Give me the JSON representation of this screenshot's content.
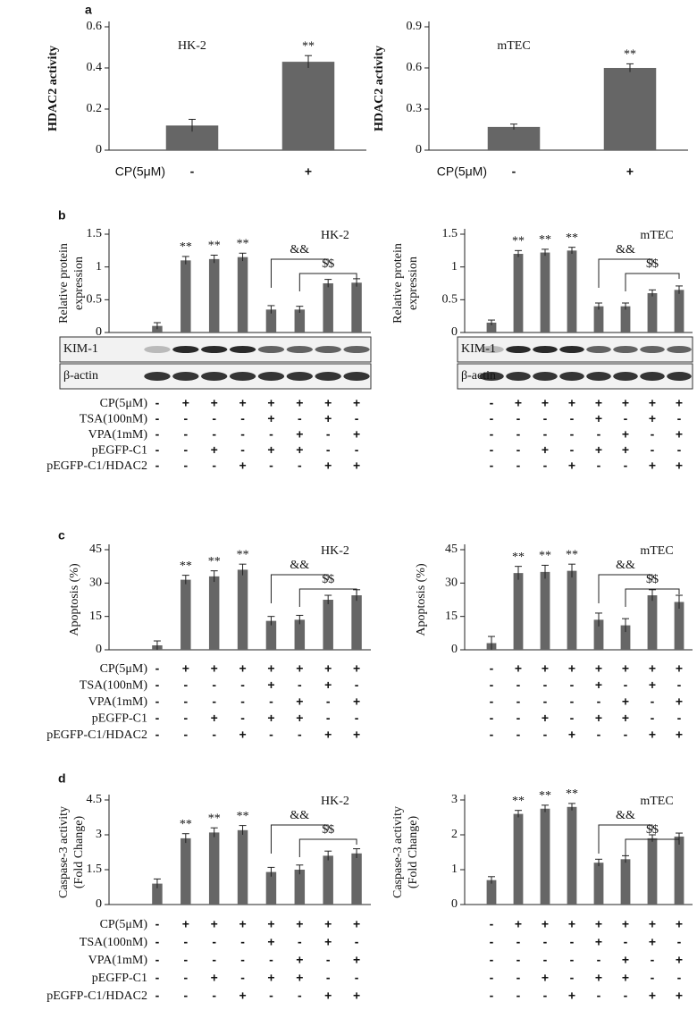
{
  "chart_data": [
    {
      "type": "bar",
      "panel_label": "a",
      "title": "HK-2",
      "ylabel": "HDAC2 activity",
      "ylim": [
        0,
        0.6
      ],
      "yticks": [
        0,
        0.2,
        0.4,
        0.6
      ],
      "color": "#666666",
      "values": [
        0.12,
        0.43
      ],
      "errors": [
        0.03,
        0.03
      ],
      "stars": [
        null,
        "**"
      ],
      "conditions": [
        {
          "label": "CP(5μM)",
          "signs": [
            "-",
            "+"
          ]
        }
      ]
    },
    {
      "type": "bar",
      "title": "mTEC",
      "ylabel": "HDAC2 activity",
      "ylim": [
        0,
        0.9
      ],
      "yticks": [
        0,
        0.3,
        0.6,
        0.9
      ],
      "color": "#666666",
      "values": [
        0.17,
        0.6
      ],
      "errors": [
        0.02,
        0.03
      ],
      "stars": [
        null,
        "**"
      ],
      "conditions": [
        {
          "label": "CP(5μM)",
          "signs": [
            "-",
            "+"
          ]
        }
      ]
    },
    {
      "type": "bar",
      "panel_label": "b",
      "title": "HK-2",
      "ylabel": [
        "Relative protein",
        "expression"
      ],
      "ylim": [
        0,
        1.5
      ],
      "yticks": [
        0,
        0.5,
        1,
        1.5
      ],
      "color": "#666666",
      "values": [
        0.1,
        1.1,
        1.12,
        1.15,
        0.35,
        0.35,
        0.75,
        0.76
      ],
      "errors": [
        0.05,
        0.06,
        0.06,
        0.06,
        0.06,
        0.05,
        0.06,
        0.06
      ],
      "stars": [
        null,
        "**",
        "**",
        "**",
        null,
        null,
        null,
        null
      ],
      "brackets": [
        {
          "label": "&&"
        },
        {
          "label": "$$"
        }
      ],
      "blots": [
        "KIM-1",
        "β-actin"
      ],
      "conditions": [
        {
          "label": "CP(5μM)",
          "signs": [
            "-",
            "+",
            "+",
            "+",
            "+",
            "+",
            "+",
            "+"
          ]
        },
        {
          "label": "TSA(100nM)",
          "signs": [
            "-",
            "-",
            "-",
            "-",
            "+",
            "-",
            "+",
            "-"
          ]
        },
        {
          "label": "VPA(1mM)",
          "signs": [
            "-",
            "-",
            "-",
            "-",
            "-",
            "+",
            "-",
            "+"
          ]
        },
        {
          "label": "pEGFP-C1",
          "signs": [
            "-",
            "-",
            "+",
            "-",
            "+",
            "+",
            "-",
            "-"
          ]
        },
        {
          "label": "pEGFP-C1/HDAC2",
          "signs": [
            "-",
            "-",
            "-",
            "+",
            "-",
            "-",
            "+",
            "+"
          ]
        }
      ]
    },
    {
      "type": "bar",
      "title": "mTEC",
      "ylabel": [
        "Relative protein",
        "expression"
      ],
      "ylim": [
        0,
        1.5
      ],
      "yticks": [
        0,
        0.5,
        1,
        1.5
      ],
      "color": "#666666",
      "values": [
        0.15,
        1.2,
        1.22,
        1.25,
        0.4,
        0.4,
        0.6,
        0.65
      ],
      "errors": [
        0.04,
        0.05,
        0.05,
        0.05,
        0.05,
        0.05,
        0.05,
        0.06
      ],
      "stars": [
        null,
        "**",
        "**",
        "**",
        null,
        null,
        null,
        null
      ],
      "brackets": [
        {
          "label": "&&"
        },
        {
          "label": "$$"
        }
      ],
      "blots": [
        "KIM-1",
        "β-actin"
      ],
      "conditions": [
        {
          "signs": [
            "-",
            "+",
            "+",
            "+",
            "+",
            "+",
            "+",
            "+"
          ]
        },
        {
          "signs": [
            "-",
            "-",
            "-",
            "-",
            "+",
            "-",
            "+",
            "-"
          ]
        },
        {
          "signs": [
            "-",
            "-",
            "-",
            "-",
            "-",
            "+",
            "-",
            "+"
          ]
        },
        {
          "signs": [
            "-",
            "-",
            "+",
            "-",
            "+",
            "+",
            "-",
            "-"
          ]
        },
        {
          "signs": [
            "-",
            "-",
            "-",
            "+",
            "-",
            "-",
            "+",
            "+"
          ]
        }
      ]
    },
    {
      "type": "bar",
      "panel_label": "c",
      "title": "HK-2",
      "ylabel": "Apoptosis (%)",
      "ylim": [
        0,
        45
      ],
      "yticks": [
        0,
        15,
        30,
        45
      ],
      "color": "#666666",
      "values": [
        2,
        31.5,
        33,
        36,
        13,
        13.5,
        22.5,
        24.5
      ],
      "errors": [
        2,
        2,
        2.5,
        2.5,
        2,
        2,
        2,
        2.5
      ],
      "stars": [
        null,
        "**",
        "**",
        "**",
        null,
        null,
        null,
        null
      ],
      "brackets": [
        {
          "label": "&&"
        },
        {
          "label": "$$"
        }
      ],
      "conditions": [
        {
          "label": "CP(5μM)",
          "signs": [
            "-",
            "+",
            "+",
            "+",
            "+",
            "+",
            "+",
            "+"
          ]
        },
        {
          "label": "TSA(100nM)",
          "signs": [
            "-",
            "-",
            "-",
            "-",
            "+",
            "-",
            "+",
            "-"
          ]
        },
        {
          "label": "VPA(1mM)",
          "signs": [
            "-",
            "-",
            "-",
            "-",
            "-",
            "+",
            "-",
            "+"
          ]
        },
        {
          "label": "pEGFP-C1",
          "signs": [
            "-",
            "-",
            "+",
            "-",
            "+",
            "+",
            "-",
            "-"
          ]
        },
        {
          "label": "pEGFP-C1/HDAC2",
          "signs": [
            "-",
            "-",
            "-",
            "+",
            "-",
            "-",
            "+",
            "+"
          ]
        }
      ]
    },
    {
      "type": "bar",
      "title": "mTEC",
      "ylabel": "Apoptosis (%)",
      "ylim": [
        0,
        45
      ],
      "yticks": [
        0,
        15,
        30,
        45
      ],
      "color": "#666666",
      "values": [
        3,
        34.5,
        35,
        35.5,
        13.5,
        11,
        24.5,
        21.5
      ],
      "errors": [
        3,
        3,
        3,
        3,
        3,
        3,
        2.5,
        3
      ],
      "stars": [
        null,
        "**",
        "**",
        "**",
        null,
        null,
        null,
        null
      ],
      "brackets": [
        {
          "label": "&&"
        },
        {
          "label": "$$"
        }
      ],
      "conditions": [
        {
          "signs": [
            "-",
            "+",
            "+",
            "+",
            "+",
            "+",
            "+",
            "+"
          ]
        },
        {
          "signs": [
            "-",
            "-",
            "-",
            "-",
            "+",
            "-",
            "+",
            "-"
          ]
        },
        {
          "signs": [
            "-",
            "-",
            "-",
            "-",
            "-",
            "+",
            "-",
            "+"
          ]
        },
        {
          "signs": [
            "-",
            "-",
            "+",
            "-",
            "+",
            "+",
            "-",
            "-"
          ]
        },
        {
          "signs": [
            "-",
            "-",
            "-",
            "+",
            "-",
            "-",
            "+",
            "+"
          ]
        }
      ]
    },
    {
      "type": "bar",
      "panel_label": "d",
      "title": "HK-2",
      "ylabel": [
        "Caspase-3 activity",
        "(Fold Change)"
      ],
      "ylim": [
        0,
        4.5
      ],
      "yticks": [
        0,
        1.5,
        3,
        4.5
      ],
      "color": "#666666",
      "values": [
        0.9,
        2.85,
        3.1,
        3.2,
        1.4,
        1.5,
        2.1,
        2.2
      ],
      "errors": [
        0.2,
        0.2,
        0.2,
        0.2,
        0.2,
        0.2,
        0.2,
        0.2
      ],
      "stars": [
        null,
        "**",
        "**",
        "**",
        null,
        null,
        null,
        null
      ],
      "brackets": [
        {
          "label": "&&"
        },
        {
          "label": "$$"
        }
      ],
      "conditions": [
        {
          "label": "CP(5μM)",
          "signs": [
            "-",
            "+",
            "+",
            "+",
            "+",
            "+",
            "+",
            "+"
          ]
        },
        {
          "label": "TSA(100nM)",
          "signs": [
            "-",
            "-",
            "-",
            "-",
            "+",
            "-",
            "+",
            "-"
          ]
        },
        {
          "label": "VPA(1mM)",
          "signs": [
            "-",
            "-",
            "-",
            "-",
            "-",
            "+",
            "-",
            "+"
          ]
        },
        {
          "label": "pEGFP-C1",
          "signs": [
            "-",
            "-",
            "+",
            "-",
            "+",
            "+",
            "-",
            "-"
          ]
        },
        {
          "label": "pEGFP-C1/HDAC2",
          "signs": [
            "-",
            "-",
            "-",
            "+",
            "-",
            "-",
            "+",
            "+"
          ]
        }
      ]
    },
    {
      "type": "bar",
      "title": "mTEC",
      "ylabel": [
        "Caspase-3 activity",
        "(Fold Change)"
      ],
      "ylim": [
        0,
        3
      ],
      "yticks": [
        0,
        1,
        2,
        3
      ],
      "color": "#666666",
      "values": [
        0.7,
        2.6,
        2.75,
        2.8,
        1.2,
        1.3,
        1.9,
        1.95
      ],
      "errors": [
        0.1,
        0.1,
        0.1,
        0.1,
        0.1,
        0.1,
        0.1,
        0.1
      ],
      "stars": [
        null,
        "**",
        "**",
        "**",
        null,
        null,
        null,
        null
      ],
      "brackets": [
        {
          "label": "&&"
        },
        {
          "label": "$$"
        }
      ],
      "conditions": [
        {
          "signs": [
            "-",
            "+",
            "+",
            "+",
            "+",
            "+",
            "+",
            "+"
          ]
        },
        {
          "signs": [
            "-",
            "-",
            "-",
            "-",
            "+",
            "-",
            "+",
            "-"
          ]
        },
        {
          "signs": [
            "-",
            "-",
            "-",
            "-",
            "-",
            "+",
            "-",
            "+"
          ]
        },
        {
          "signs": [
            "-",
            "-",
            "+",
            "-",
            "+",
            "+",
            "-",
            "-"
          ]
        },
        {
          "signs": [
            "-",
            "-",
            "-",
            "+",
            "-",
            "-",
            "+",
            "+"
          ]
        }
      ]
    }
  ]
}
